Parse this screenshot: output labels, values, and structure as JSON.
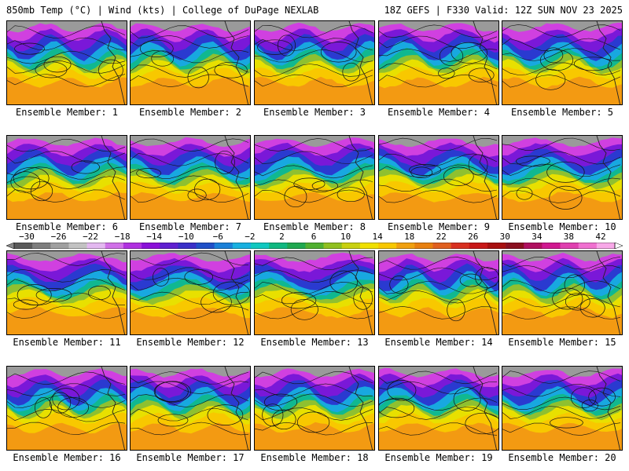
{
  "header": {
    "left": "850mb Temp (°C) | Wind (kts) | College of DuPage NEXLAB",
    "right": "18Z GEFS | F330 Valid: 12Z SUN NOV 23 2025"
  },
  "panels": [
    {
      "label": "Ensemble Member: 1"
    },
    {
      "label": "Ensemble Member: 2"
    },
    {
      "label": "Ensemble Member: 3"
    },
    {
      "label": "Ensemble Member: 4"
    },
    {
      "label": "Ensemble Member: 5"
    },
    {
      "label": "Ensemble Member: 6"
    },
    {
      "label": "Ensemble Member: 7"
    },
    {
      "label": "Ensemble Member: 8"
    },
    {
      "label": "Ensemble Member: 9"
    },
    {
      "label": "Ensemble Member: 10"
    },
    {
      "label": "Ensemble Member: 11"
    },
    {
      "label": "Ensemble Member: 12"
    },
    {
      "label": "Ensemble Member: 13"
    },
    {
      "label": "Ensemble Member: 14"
    },
    {
      "label": "Ensemble Member: 15"
    },
    {
      "label": "Ensemble Member: 16"
    },
    {
      "label": "Ensemble Member: 17"
    },
    {
      "label": "Ensemble Member: 18"
    },
    {
      "label": "Ensemble Member: 19"
    },
    {
      "label": "Ensemble Member: 20"
    }
  ],
  "colorbar": {
    "labels": [
      "−30",
      "−26",
      "−22",
      "−18",
      "−14",
      "−10",
      "−6",
      "−2",
      "2",
      "6",
      "10",
      "14",
      "18",
      "22",
      "26",
      "30",
      "34",
      "38",
      "42"
    ],
    "colors": [
      "#5a5a5a",
      "#7d7d7d",
      "#a0a0a0",
      "#c2c2c2",
      "#e3b8f0",
      "#d070e8",
      "#b030e0",
      "#8a10d8",
      "#6020d0",
      "#3a30c8",
      "#2050c8",
      "#1a80d8",
      "#18b0e0",
      "#10c8c0",
      "#10b880",
      "#20a850",
      "#50b030",
      "#90c020",
      "#c8d010",
      "#f0e000",
      "#f8c800",
      "#f0a010",
      "#e88010",
      "#e06020",
      "#d83020",
      "#c81818",
      "#a81010",
      "#8a1020",
      "#b01060",
      "#d01890",
      "#e040b0",
      "#f070d0",
      "#f8a8e8"
    ]
  }
}
